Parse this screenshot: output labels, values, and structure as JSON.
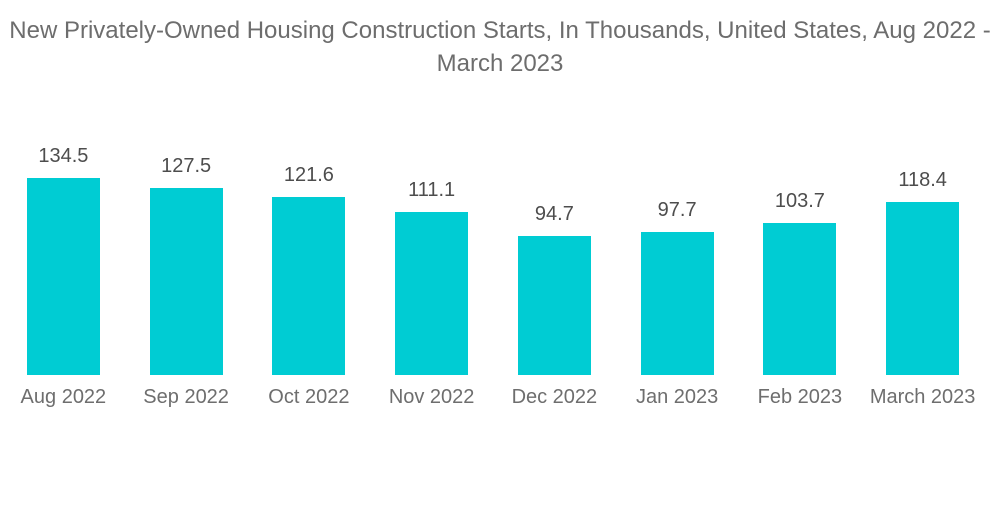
{
  "title_lines": [
    "New Privately-Owned Housing Construction Starts, In Thousands, United States, Aug 2022 -",
    "March 2023"
  ],
  "chart_data": {
    "type": "bar",
    "title": "New Privately-Owned Housing Construction Starts, In Thousands, United States, Aug 2022 - March 2023",
    "categories": [
      "Aug 2022",
      "Sep 2022",
      "Oct 2022",
      "Nov 2022",
      "Dec 2022",
      "Jan 2023",
      "Feb 2023",
      "March 2023"
    ],
    "values": [
      134.5,
      127.5,
      121.6,
      111.1,
      94.7,
      97.7,
      103.7,
      118.4
    ],
    "xlabel": "",
    "ylabel": "",
    "ylim": [
      0,
      140
    ],
    "grid": false,
    "legend": false,
    "axes_shown": false,
    "value_labels_shown": true,
    "bar_color": "#00CCD3",
    "background_color": "#FFFFFF",
    "title_color": "#6D6D6D",
    "value_label_color": "#4D4D4D",
    "category_label_color": "#6E6E6E"
  }
}
